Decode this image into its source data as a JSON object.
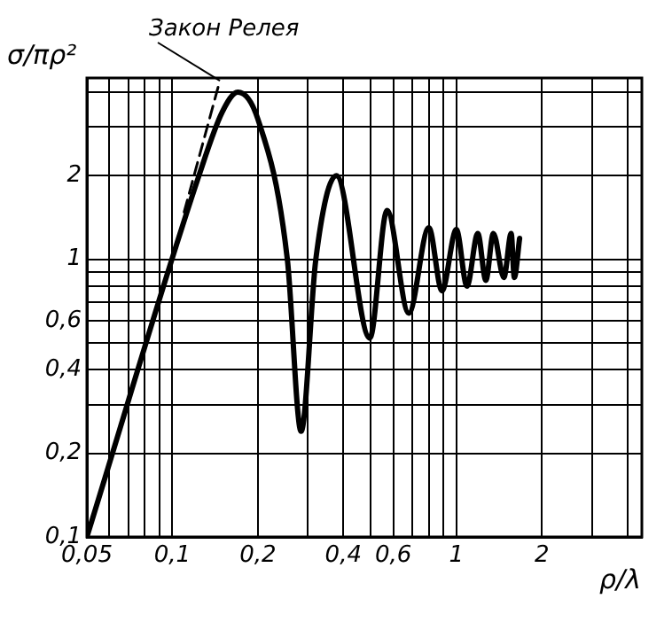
{
  "chart_data": {
    "type": "line",
    "xlabel": "ρ/λ",
    "ylabel": "σ/πρ²",
    "log": "xy",
    "grid": true,
    "legend": false,
    "marker": "none",
    "xlim": [
      0.05,
      4.5
    ],
    "ylim": [
      0.1,
      4.5
    ],
    "xticks": [
      {
        "value": 0.05,
        "label": "0,05"
      },
      {
        "value": 0.06,
        "label": null
      },
      {
        "value": 0.07,
        "label": null
      },
      {
        "value": 0.08,
        "label": null
      },
      {
        "value": 0.09,
        "label": null
      },
      {
        "value": 0.1,
        "label": "0,1"
      },
      {
        "value": 0.2,
        "label": "0,2"
      },
      {
        "value": 0.3,
        "label": null
      },
      {
        "value": 0.4,
        "label": "0,4"
      },
      {
        "value": 0.5,
        "label": null
      },
      {
        "value": 0.6,
        "label": "0,6"
      },
      {
        "value": 0.7,
        "label": null
      },
      {
        "value": 0.8,
        "label": null
      },
      {
        "value": 0.9,
        "label": null
      },
      {
        "value": 1,
        "label": "1"
      },
      {
        "value": 2,
        "label": "2"
      },
      {
        "value": 3,
        "label": null
      },
      {
        "value": 4,
        "label": null
      }
    ],
    "yticks": [
      {
        "value": 0.1,
        "label": "0,1"
      },
      {
        "value": 0.2,
        "label": "0,2"
      },
      {
        "value": 0.3,
        "label": null
      },
      {
        "value": 0.4,
        "label": "0,4"
      },
      {
        "value": 0.5,
        "label": null
      },
      {
        "value": 0.6,
        "label": "0,6"
      },
      {
        "value": 0.7,
        "label": null
      },
      {
        "value": 0.8,
        "label": null
      },
      {
        "value": 0.9,
        "label": null
      },
      {
        "value": 1,
        "label": "1"
      },
      {
        "value": 2,
        "label": "2"
      },
      {
        "value": 3,
        "label": null
      },
      {
        "value": 4,
        "label": null
      }
    ],
    "series": [
      {
        "color": "#000000",
        "line_style": "solid",
        "x": [
          0.05,
          0.124,
          0.15,
          0.17,
          0.2,
          0.254,
          0.284,
          0.32,
          0.378,
          0.496,
          0.57,
          0.68,
          0.8,
          0.89,
          1.0,
          1.09,
          1.19,
          1.27,
          1.35,
          1.47,
          1.56,
          1.6,
          1.67
        ],
        "values": [
          0.1,
          2,
          3.4,
          4.0,
          3.2,
          1,
          0.24,
          1,
          2.0,
          0.52,
          1.5,
          0.64,
          1.3,
          0.77,
          1.28,
          0.8,
          1.24,
          0.84,
          1.24,
          0.86,
          1.24,
          0.86,
          1.19
        ]
      },
      {
        "color": "#000000",
        "line_style": "dashed",
        "x": [
          0.11,
          0.147
        ],
        "values": [
          1.48,
          4.4
        ]
      }
    ],
    "annotations": [
      {
        "text": "Закон Релея",
        "x": 0.147,
        "y": 4.4
      }
    ]
  }
}
